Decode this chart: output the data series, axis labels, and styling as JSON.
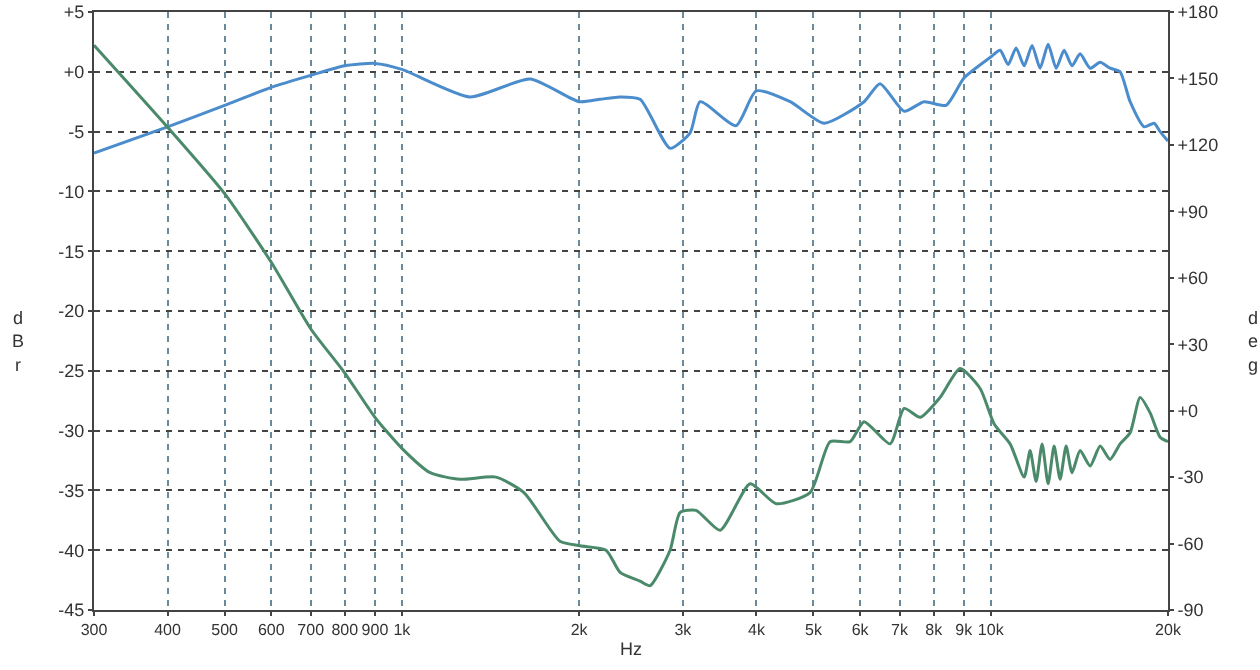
{
  "chart_data": {
    "type": "line",
    "xlabel": "Hz",
    "ylabel": "dBr",
    "y2label": "deg",
    "log": "x",
    "grid": true,
    "marker": "none",
    "line_style": "solid",
    "xlim": [
      300,
      20000
    ],
    "xticks": [
      300,
      400,
      500,
      600,
      700,
      800,
      900,
      {
        "value": 1000,
        "label": "1k"
      },
      {
        "value": 2000,
        "label": "2k"
      },
      {
        "value": 3000,
        "label": "3k"
      },
      {
        "value": 4000,
        "label": "4k"
      },
      {
        "value": 5000,
        "label": "5k"
      },
      {
        "value": 6000,
        "label": "6k"
      },
      {
        "value": 7000,
        "label": "7k"
      },
      {
        "value": 8000,
        "label": "8k"
      },
      {
        "value": 9000,
        "label": "9k"
      },
      {
        "value": 10000,
        "label": "10k"
      },
      {
        "value": 20000,
        "label": "20k"
      }
    ],
    "ylim": [
      -45,
      5
    ],
    "yticks": [
      {
        "value": 5,
        "label": "+5"
      },
      {
        "value": 0,
        "label": "+0"
      },
      -5,
      -10,
      -15,
      -20,
      -25,
      -30,
      -35,
      -40,
      -45
    ],
    "y2lim": [
      -90,
      180
    ],
    "y2ticks": [
      {
        "value": 180,
        "label": "+180"
      },
      {
        "value": 150,
        "label": "+150"
      },
      {
        "value": 120,
        "label": "+120"
      },
      {
        "value": 90,
        "label": "+90"
      },
      {
        "value": 60,
        "label": "+60"
      },
      {
        "value": 30,
        "label": "+30"
      },
      {
        "value": 0,
        "label": "+0"
      },
      -30,
      -60,
      -90
    ],
    "series": [
      {
        "color": "#4a8ccc",
        "x": [
          300,
          400,
          500,
          600,
          700,
          800,
          900,
          1000,
          1305,
          1651,
          2000,
          2170,
          2347,
          2538,
          2854,
          3086,
          3210,
          3694,
          3997,
          4564,
          5212,
          6094,
          6486,
          7128,
          7705,
          8398,
          9013,
          9975,
          10373,
          10704,
          11043,
          11395,
          11754,
          12129,
          12515,
          12913,
          13323,
          13743,
          14182,
          14749,
          15339,
          15948,
          16584,
          17247,
          18219,
          18940,
          19395,
          20000
        ],
        "values": [
          -6.8,
          -4.6,
          -2.8,
          -1.3,
          -0.3,
          0.5,
          0.7,
          0.2,
          -2.1,
          -0.6,
          -2.5,
          -2.3,
          -2.1,
          -2.3,
          -6.4,
          -5.1,
          -2.5,
          -4.5,
          -1.6,
          -2.5,
          -4.3,
          -2.5,
          -1.0,
          -3.3,
          -2.5,
          -2.8,
          -0.5,
          1.2,
          1.8,
          0.6,
          2.0,
          0.5,
          2.2,
          0.3,
          2.3,
          0.3,
          1.8,
          0.5,
          1.5,
          0.3,
          0.8,
          0.3,
          0.0,
          -2.5,
          -4.6,
          -4.3,
          -5.0,
          -5.8
        ]
      },
      {
        "color": "#4a8a6a",
        "axis": "y2",
        "x": [
          300,
          400,
          500,
          600,
          700,
          800,
          900,
          1000,
          1117,
          1255,
          1445,
          1612,
          1856,
          2007,
          2222,
          2347,
          2538,
          2639,
          2854,
          2967,
          3159,
          3471,
          3903,
          4321,
          4933,
          5335,
          5770,
          6094,
          6746,
          7128,
          7588,
          8204,
          8871,
          9594,
          10135,
          10787,
          11395,
          11664,
          11942,
          12225,
          12515,
          12812,
          13117,
          13427,
          13743,
          14182,
          14749,
          15339,
          15948,
          16584,
          17247,
          17935,
          18651,
          19395,
          20000
        ],
        "values": [
          165,
          128,
          98,
          67,
          37,
          17,
          -3,
          -17,
          -28,
          -31,
          -30,
          -37,
          -59,
          -61,
          -63,
          -73,
          -77,
          -79,
          -63,
          -46,
          -45,
          -54,
          -33,
          -42,
          -37,
          -14,
          -14,
          -5,
          -15,
          1,
          -3,
          6,
          19,
          10,
          -6,
          -15,
          -30,
          -18,
          -32,
          -15,
          -33,
          -16,
          -31,
          -16,
          -28,
          -18,
          -25,
          -16,
          -22,
          -15,
          -10,
          6,
          -1,
          -12,
          -14
        ]
      }
    ]
  }
}
